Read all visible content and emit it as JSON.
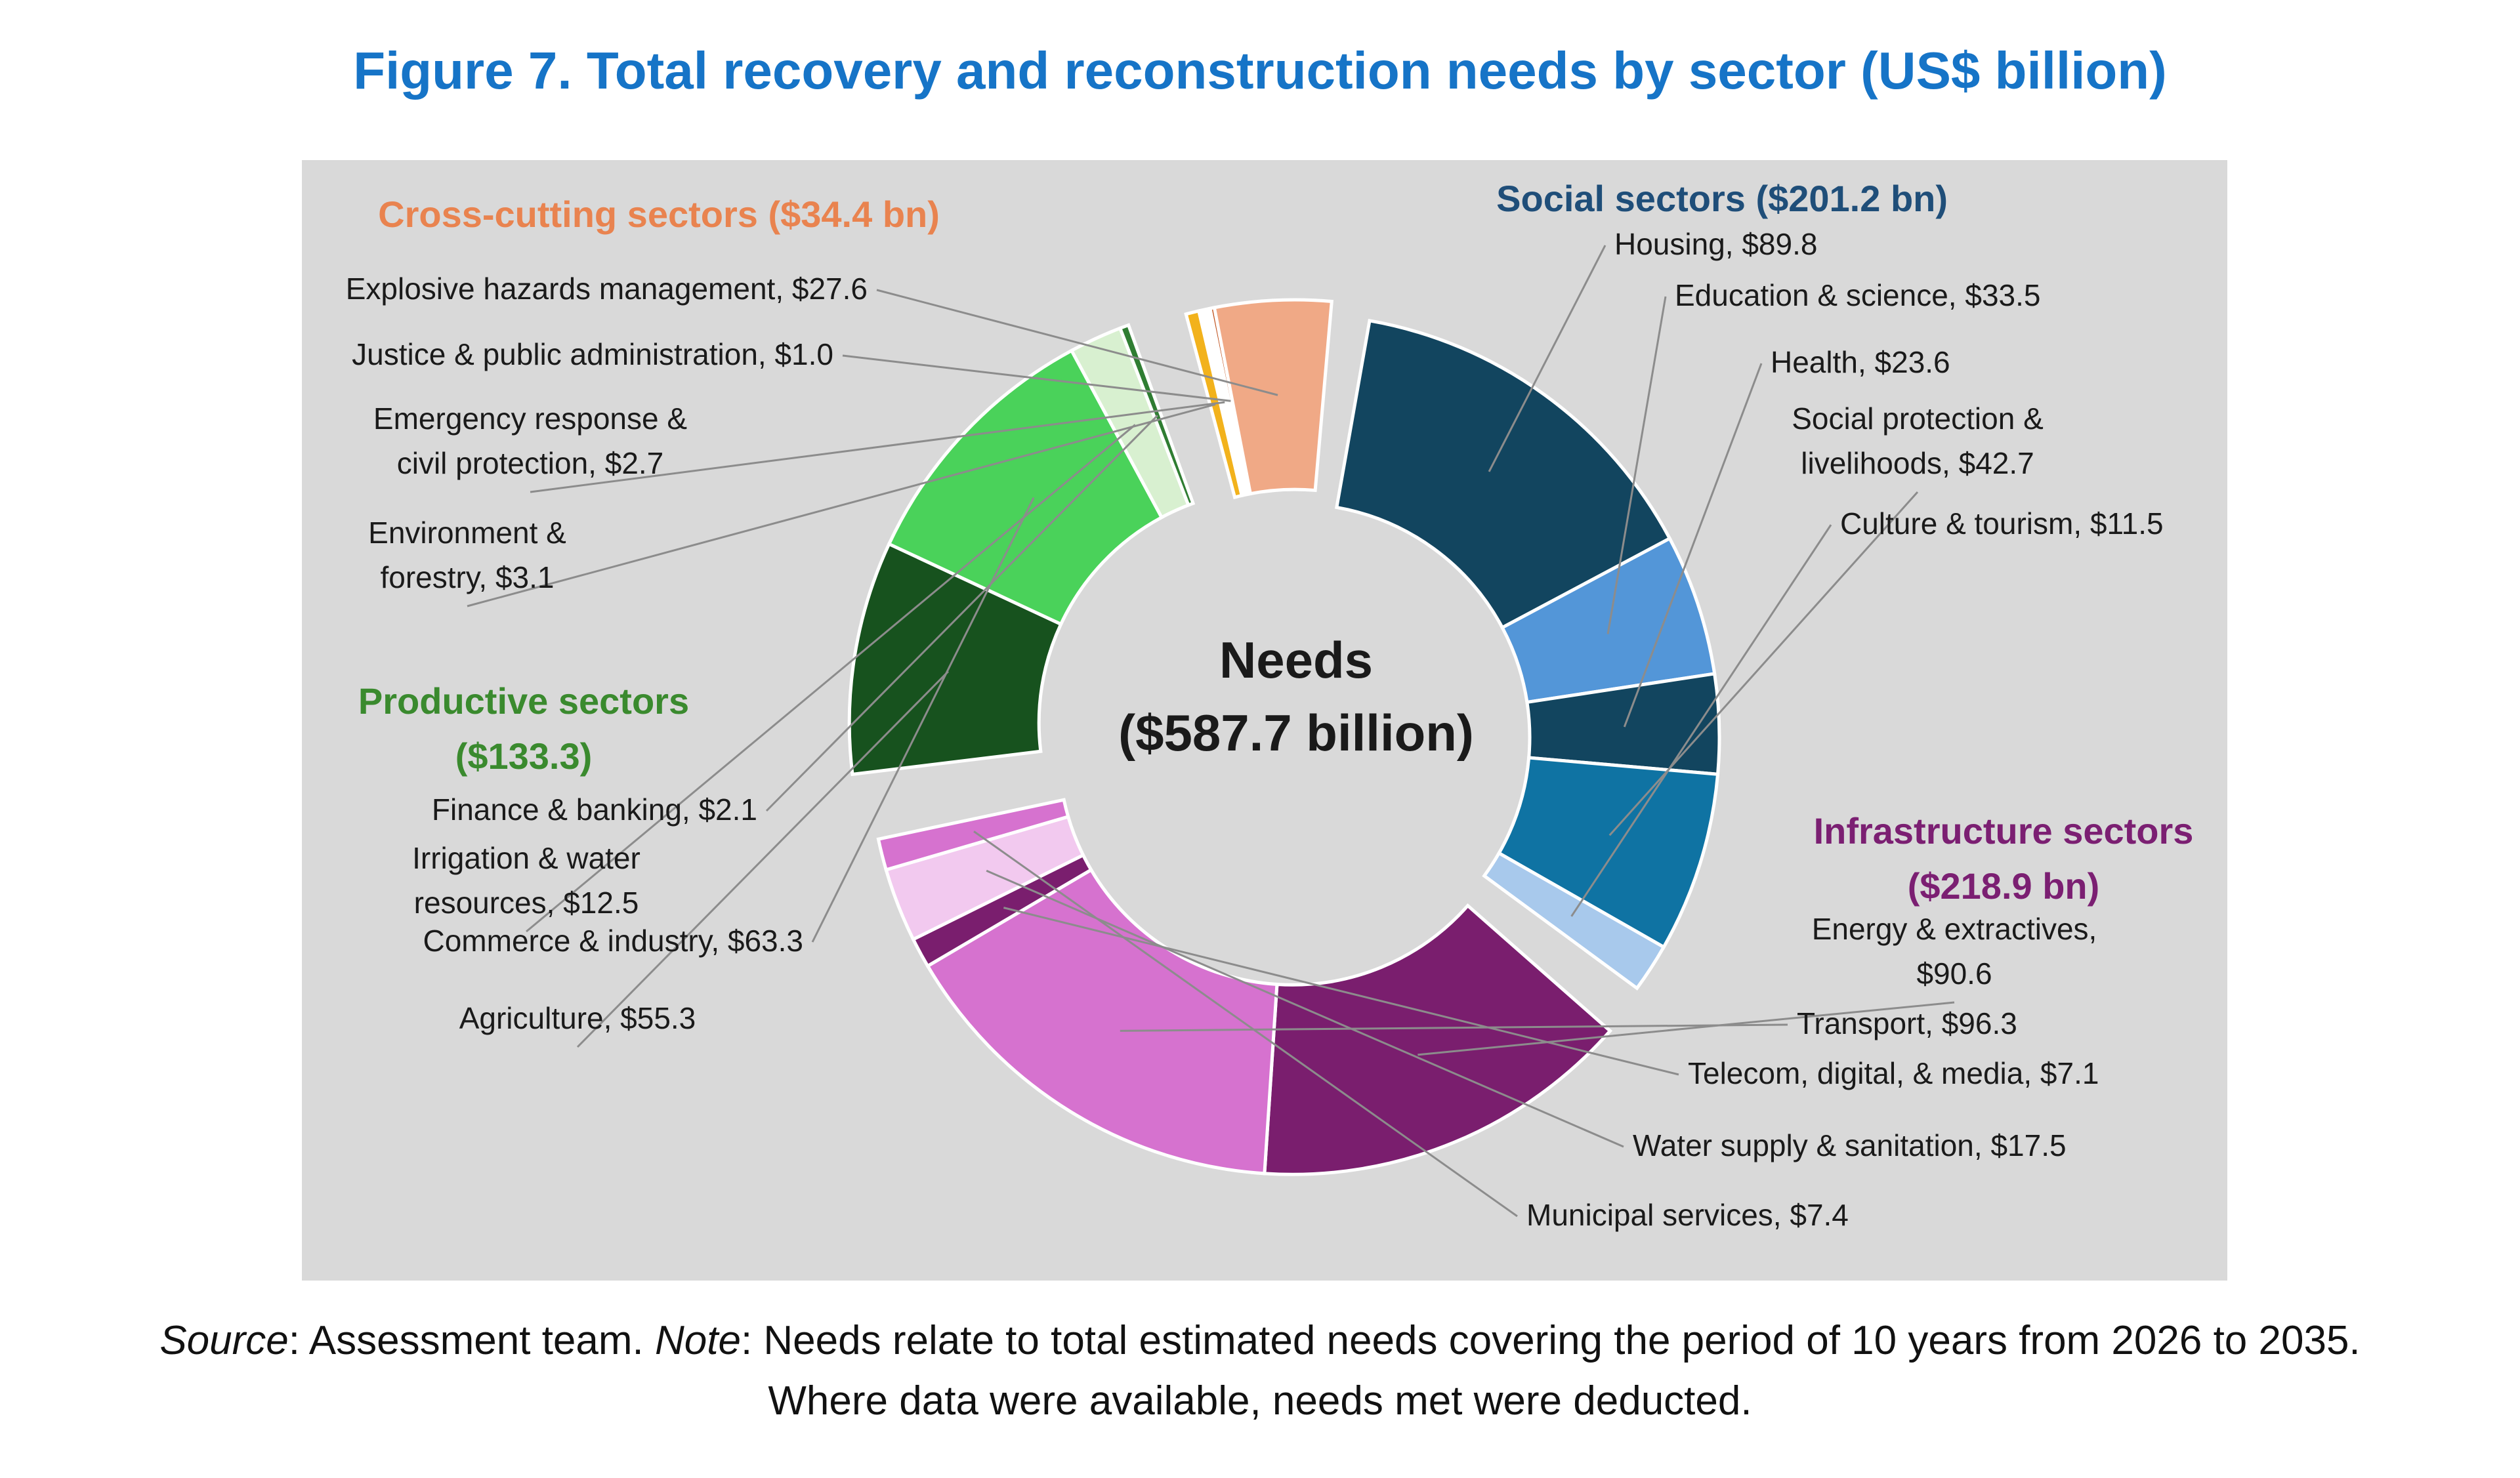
{
  "title": "Figure 7. Total recovery and reconstruction needs by sector (US$ billion)",
  "source": {
    "source_word": "Source",
    "source_text": ": Assessment team. ",
    "note_word": "Note",
    "note_text": ": Needs relate to total estimated needs covering the period of 10 years from 2026 to 2035.",
    "line2": "Where data were available, needs met were deducted."
  },
  "chart_data": {
    "type": "pie",
    "subtype": "exploded-donut",
    "center_label": [
      "Needs",
      "($587.7 billion)"
    ],
    "total": 587.7,
    "groups": [
      {
        "name": "Social sectors",
        "label": [
          "Social sectors ($201.2 bn)"
        ],
        "color": "#1f4e79",
        "sectors": [
          {
            "name": "Housing",
            "value": 89.8,
            "label": [
              "Housing, $89.8"
            ],
            "color": "#12455f"
          },
          {
            "name": "Education & science",
            "value": 33.5,
            "label": [
              "Education & science, $33.5"
            ],
            "color": "#5396d8"
          },
          {
            "name": "Health",
            "value": 23.6,
            "label": [
              "Health, $23.6"
            ],
            "color": "#12455f"
          },
          {
            "name": "Social protection & livelihoods",
            "value": 42.7,
            "label": [
              "Social protection &",
              "livelihoods, $42.7"
            ],
            "color": "#0f73a3"
          },
          {
            "name": "Culture & tourism",
            "value": 11.5,
            "label": [
              "Culture & tourism, $11.5"
            ],
            "color": "#a8c9ec"
          }
        ]
      },
      {
        "name": "Infrastructure sectors",
        "label": [
          "Infrastructure sectors",
          "($218.9 bn)"
        ],
        "color": "#7b1f72",
        "sectors": [
          {
            "name": "Energy & extractives",
            "value": 90.6,
            "label": [
              "Energy & extractives,",
              "$90.6"
            ],
            "color": "#7a1e6e"
          },
          {
            "name": "Transport",
            "value": 96.3,
            "label": [
              "Transport, $96.3"
            ],
            "color": "#d672cf"
          },
          {
            "name": "Telecom, digital, & media",
            "value": 7.1,
            "label": [
              "Telecom, digital, & media, $7.1"
            ],
            "color": "#7a1e6e"
          },
          {
            "name": "Water supply & sanitation",
            "value": 17.5,
            "label": [
              "Water supply & sanitation, $17.5"
            ],
            "color": "#f2c9ef"
          },
          {
            "name": "Municipal services",
            "value": 7.4,
            "label": [
              "Municipal services, $7.4"
            ],
            "color": "#d672cf"
          }
        ]
      },
      {
        "name": "Productive sectors",
        "label": [
          "Productive sectors",
          "($133.3)"
        ],
        "color": "#3a8a2e",
        "sectors": [
          {
            "name": "Agriculture",
            "value": 55.3,
            "label": [
              "Agriculture, $55.3"
            ],
            "color": "#17521e"
          },
          {
            "name": "Commerce & industry",
            "value": 63.3,
            "label": [
              "Commerce & industry, $63.3"
            ],
            "color": "#4ad25a"
          },
          {
            "name": "Irrigation & water resources",
            "value": 12.5,
            "label": [
              "Irrigation & water",
              "resources, $12.5"
            ],
            "color": "#d8f0d0"
          },
          {
            "name": "Finance & banking",
            "value": 2.1,
            "label": [
              "Finance & banking, $2.1"
            ],
            "color": "#2f7d32"
          }
        ]
      },
      {
        "name": "Cross-cutting sectors",
        "label": [
          "Cross-cutting sectors ($34.4 bn)"
        ],
        "color": "#e9834f",
        "sectors": [
          {
            "name": "Environment & forestry",
            "value": 3.1,
            "label": [
              "Environment &",
              "forestry, $3.1"
            ],
            "color": "#f2b21c"
          },
          {
            "name": "Emergency response & civil protection",
            "value": 2.7,
            "label": [
              "Emergency response &",
              "civil protection, $2.7"
            ],
            "color": "#ffffff"
          },
          {
            "name": "Justice & public administration",
            "value": 1.0,
            "label": [
              "Justice & public administration, $1.0"
            ],
            "color": "#c0531f"
          },
          {
            "name": "Explosive hazards management",
            "value": 27.6,
            "label": [
              "Explosive hazards management, $27.6"
            ],
            "color": "#f0a986"
          }
        ]
      }
    ]
  }
}
